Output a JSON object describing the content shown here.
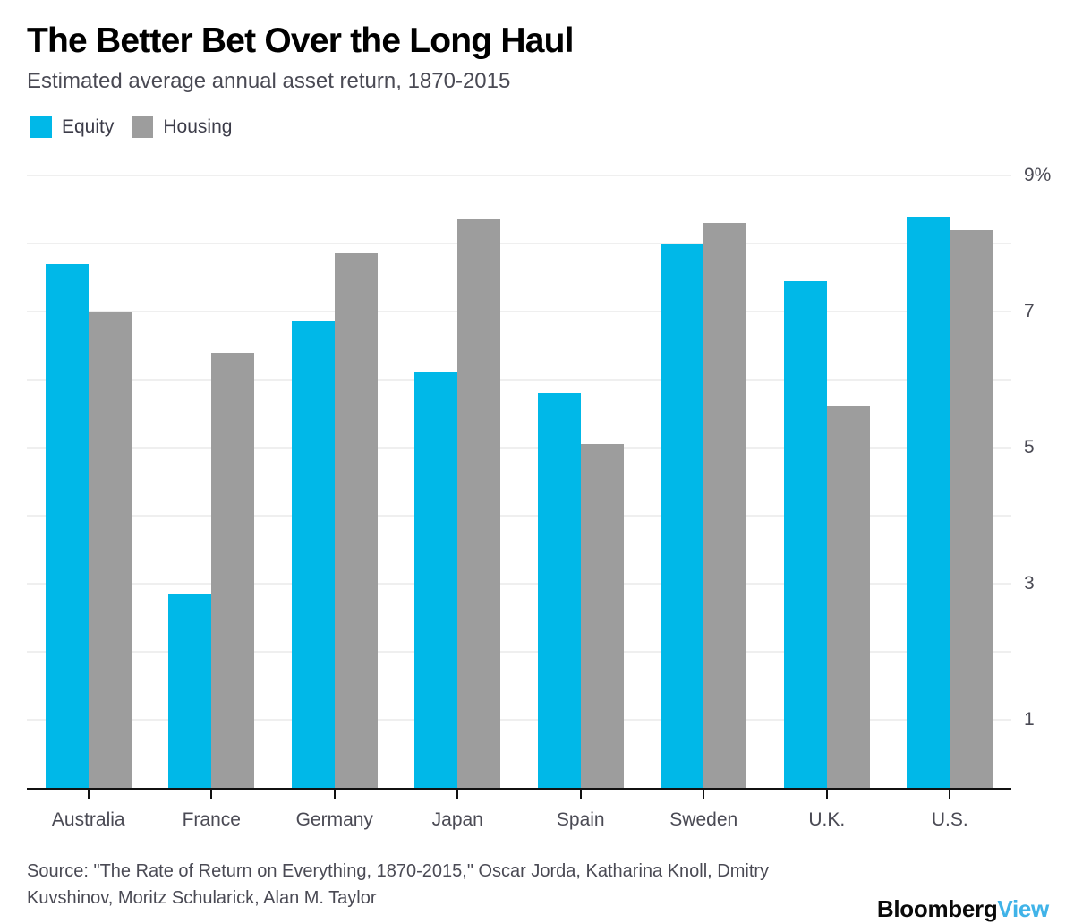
{
  "header": {
    "title": "The Better Bet Over the Long Haul",
    "subtitle": "Estimated average annual asset return, 1870-2015"
  },
  "legend": [
    {
      "label": "Equity",
      "color": "#00b8e8"
    },
    {
      "label": "Housing",
      "color": "#9d9d9d"
    }
  ],
  "chart_data": {
    "type": "bar",
    "title": "The Better Bet Over the Long Haul",
    "subtitle": "Estimated average annual asset return, 1870-2015",
    "categories": [
      "Australia",
      "France",
      "Germany",
      "Japan",
      "Spain",
      "Sweden",
      "U.K.",
      "U.S."
    ],
    "series": [
      {
        "name": "Equity",
        "color": "#00b8e8",
        "values": [
          7.7,
          2.85,
          6.85,
          6.1,
          5.8,
          8.0,
          7.45,
          8.4
        ]
      },
      {
        "name": "Housing",
        "color": "#9d9d9d",
        "values": [
          7.0,
          6.4,
          7.85,
          8.35,
          5.05,
          8.3,
          5.6,
          8.2
        ]
      }
    ],
    "ylabel": "",
    "xlabel": "",
    "ylim": [
      0,
      9.08
    ],
    "grid": true,
    "gridline_values": [
      1,
      2,
      3,
      4,
      5,
      6,
      7,
      8,
      9
    ],
    "y_tick_labels": [
      {
        "value": 9,
        "label": "9%"
      },
      {
        "value": 7,
        "label": "7"
      },
      {
        "value": 5,
        "label": "5"
      },
      {
        "value": 3,
        "label": "3"
      },
      {
        "value": 1,
        "label": "1"
      }
    ],
    "legend_position": "top-left"
  },
  "footer": {
    "source_line1": "Source: \"The Rate of Return on Everything, 1870-2015,\" Oscar Jorda, Katharina Knoll, Dmitry",
    "source_line2": "Kuvshinov, Moritz Schularick, Alan M. Taylor",
    "logo_part1": "Bloomberg",
    "logo_part2": "View"
  },
  "colors": {
    "equity": "#00b8e8",
    "housing": "#9d9d9d",
    "gridline": "#efefef",
    "axis": "#111111",
    "text_muted": "#4a4a54",
    "logo_view": "#40b3e8"
  }
}
